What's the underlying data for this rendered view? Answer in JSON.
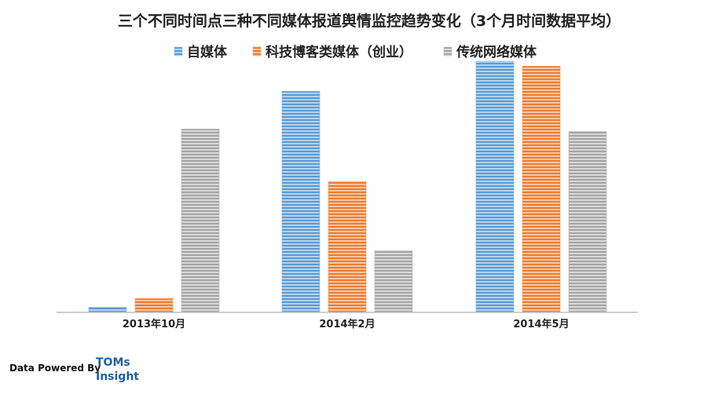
{
  "chart_data": {
    "type": "bar",
    "title": "三个不同时间点三种不同媒体报道舆情监控趋势变化（3个月时间数据平均）",
    "categories": [
      "2013年10月",
      "2014年2月",
      "2014年5月"
    ],
    "series": [
      {
        "name": "自媒体",
        "values": [
          2,
          88,
          100
        ],
        "color": "#5b9bd5"
      },
      {
        "name": "科技博客类媒体（创业）",
        "values": [
          5.5,
          52,
          98
        ],
        "color": "#ed7d31"
      },
      {
        "name": "传统网络媒体",
        "values": [
          73,
          24.5,
          72
        ],
        "color": "#a5a5a5"
      }
    ],
    "ylim": [
      0,
      100
    ],
    "grid": false,
    "legend": "top",
    "bar_pattern": "horizontal-stripes"
  },
  "footer": {
    "credit": "Data Powered By",
    "logo_line1": "TOMs",
    "logo_line2": "Insight"
  }
}
